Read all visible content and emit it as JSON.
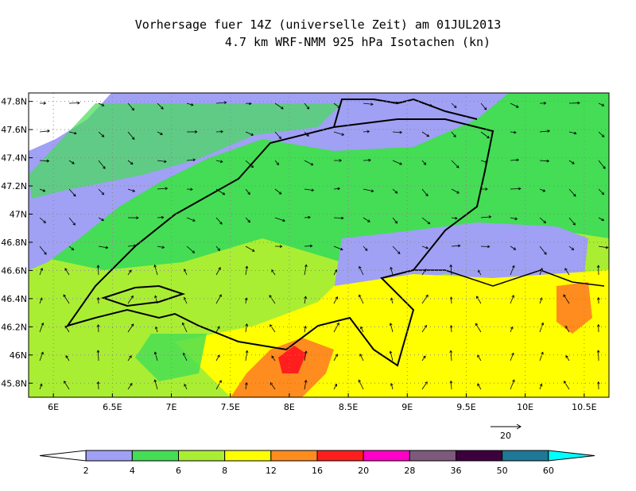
{
  "title": [
    "Vorhersage fuer 14Z (universelle Zeit) am 01JUL2013",
    "4.7 km WRF-NMM 925 hPa Isotachen (kn)"
  ],
  "map": {
    "xlim": [
      5.79,
      10.71
    ],
    "ylim": [
      45.7,
      47.86
    ],
    "xticks": [
      {
        "value": 6,
        "label": "6E"
      },
      {
        "value": 6.5,
        "label": "6.5E"
      },
      {
        "value": 7,
        "label": "7E"
      },
      {
        "value": 7.5,
        "label": "7.5E"
      },
      {
        "value": 8,
        "label": "8E"
      },
      {
        "value": 8.5,
        "label": "8.5E"
      },
      {
        "value": 9,
        "label": "9E"
      },
      {
        "value": 9.5,
        "label": "9.5E"
      },
      {
        "value": 10,
        "label": "10E"
      },
      {
        "value": 10.5,
        "label": "10.5E"
      }
    ],
    "yticks": [
      {
        "value": 45.8,
        "label": "45.8N"
      },
      {
        "value": 46,
        "label": "46N"
      },
      {
        "value": 46.2,
        "label": "46.2N"
      },
      {
        "value": 46.4,
        "label": "46.4N"
      },
      {
        "value": 46.6,
        "label": "46.6N"
      },
      {
        "value": 46.8,
        "label": "46.8N"
      },
      {
        "value": 47,
        "label": "47N"
      },
      {
        "value": 47.2,
        "label": "47.2N"
      },
      {
        "value": 47.4,
        "label": "47.4N"
      },
      {
        "value": 47.6,
        "label": "47.6N"
      },
      {
        "value": 47.8,
        "label": "47.8N"
      }
    ],
    "reference_vector": "20"
  },
  "colorbar": {
    "levels": [
      2,
      4,
      6,
      8,
      12,
      16,
      20,
      28,
      36,
      50,
      60
    ],
    "colors": [
      "#ffffff",
      "#a0a0f5",
      "#44dd55",
      "#aaee33",
      "#ffff00",
      "#ff8c1e",
      "#ff1e1e",
      "#ff00c8",
      "#7d5a7d",
      "#3c003c",
      "#1e7896",
      "#00ffff"
    ]
  }
}
